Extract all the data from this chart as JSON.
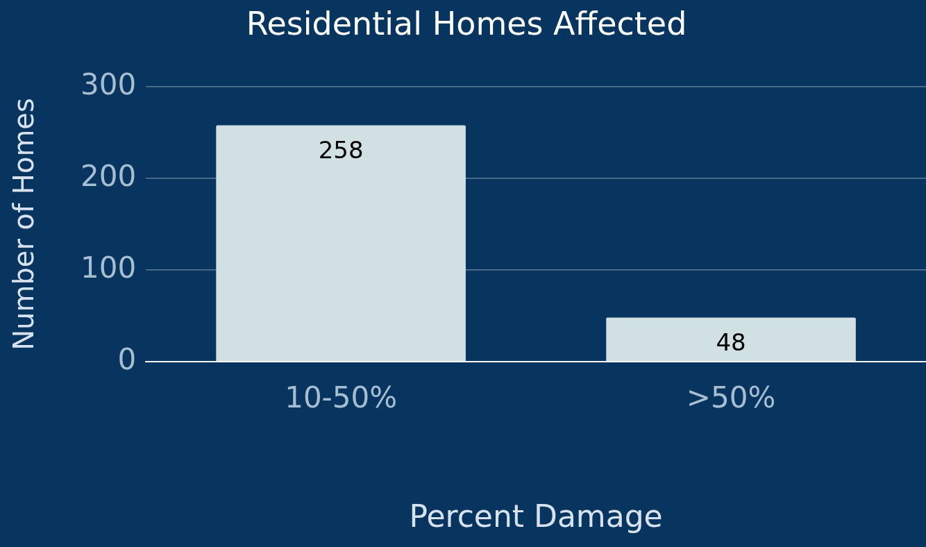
{
  "chart_data": {
    "type": "bar",
    "title": "Residential Homes Affected",
    "xlabel": "Percent Damage",
    "ylabel": "Number of Homes",
    "categories": [
      "10-50%",
      ">50%"
    ],
    "values": [
      258,
      48
    ],
    "color": "#d0e0e3",
    "ylim": [
      0,
      300
    ],
    "yticks": [
      0,
      100,
      200,
      300
    ],
    "grid": "y",
    "data_labels": true,
    "legend": false
  }
}
